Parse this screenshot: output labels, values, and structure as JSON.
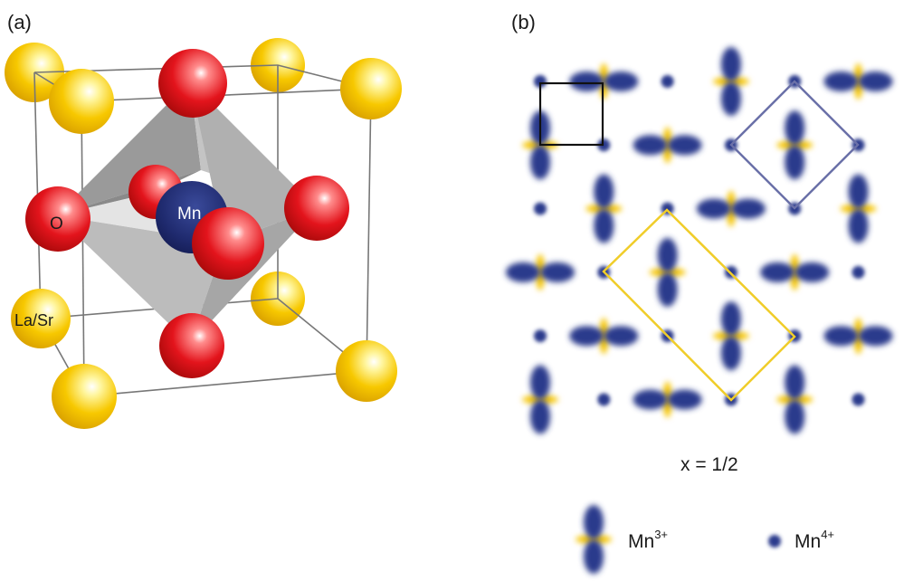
{
  "panel_a": {
    "label": "(a)",
    "atoms": {
      "oxygen": "O",
      "manganese": "Mn",
      "a_site": "La/Sr"
    }
  },
  "panel_b": {
    "label": "(b)",
    "doping": "x = 1/2",
    "legend": {
      "mn3_base": "Mn",
      "mn3_sup": "3+",
      "mn4_base": "Mn",
      "mn4_sup": "4+"
    }
  },
  "colors": {
    "oxygen": "#e02020",
    "manganese": "#1f2b6e",
    "a_site": "#f5c800",
    "orbital_lobe": "#2a3a8c",
    "orbital_ring": "#f5c400",
    "unit_cell": "#111111",
    "cell_blue": "#6a70a8",
    "cell_yellow": "#f0cd2a"
  }
}
